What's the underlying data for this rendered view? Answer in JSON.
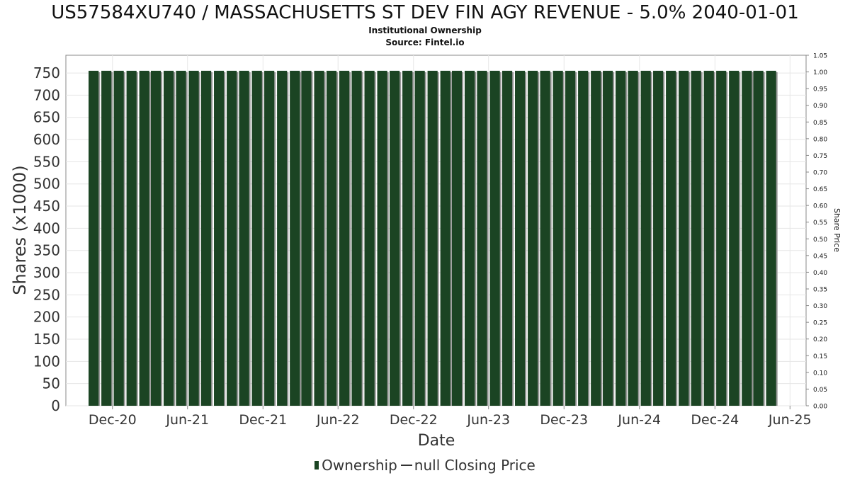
{
  "header": {
    "title": "US57584XU740 / MASSACHUSETTS ST DEV FIN AGY REVENUE - 5.0% 2040-01-01",
    "subtitle1": "Institutional Ownership",
    "subtitle2": "Source: Fintel.io"
  },
  "legend": {
    "ownership_label": "Ownership",
    "price_label": "null Closing Price"
  },
  "colors": {
    "bar": "#1b4423",
    "bar_shadow": "#999999",
    "grid": "#e6e6e6",
    "axis": "#888888"
  },
  "chart_data": {
    "type": "bar",
    "title": "",
    "xlabel": "Date",
    "ylabel": "Shares (x1000)",
    "y2label": "Share Price",
    "ylim": [
      0,
      790
    ],
    "y2lim": [
      0,
      1.05
    ],
    "yticks": [
      0,
      50,
      100,
      150,
      200,
      250,
      300,
      350,
      400,
      450,
      500,
      550,
      600,
      650,
      700,
      750
    ],
    "y2ticks": [
      "0.00",
      "0.05",
      "0.10",
      "0.15",
      "0.20",
      "0.25",
      "0.30",
      "0.35",
      "0.40",
      "0.45",
      "0.50",
      "0.55",
      "0.60",
      "0.65",
      "0.70",
      "0.75",
      "0.80",
      "0.85",
      "0.90",
      "0.95",
      "1.00",
      "1.05"
    ],
    "xlim": [
      "2020-08-10",
      "2025-07-10"
    ],
    "xticks": [
      {
        "label": "Dec-20",
        "date": "2020-12-01"
      },
      {
        "label": "Jun-21",
        "date": "2021-06-01"
      },
      {
        "label": "Dec-21",
        "date": "2021-12-01"
      },
      {
        "label": "Jun-22",
        "date": "2022-06-01"
      },
      {
        "label": "Dec-22",
        "date": "2022-12-01"
      },
      {
        "label": "Jun-23",
        "date": "2023-06-01"
      },
      {
        "label": "Dec-23",
        "date": "2023-12-01"
      },
      {
        "label": "Jun-24",
        "date": "2024-06-01"
      },
      {
        "label": "Dec-24",
        "date": "2024-12-01"
      },
      {
        "label": "Jun-25",
        "date": "2025-06-01"
      }
    ],
    "bar_start": "2020-10-01",
    "bar_end": "2025-04-01",
    "bar_period": "month",
    "bar_value": 755,
    "grid": true,
    "legend_position": "bottom"
  }
}
